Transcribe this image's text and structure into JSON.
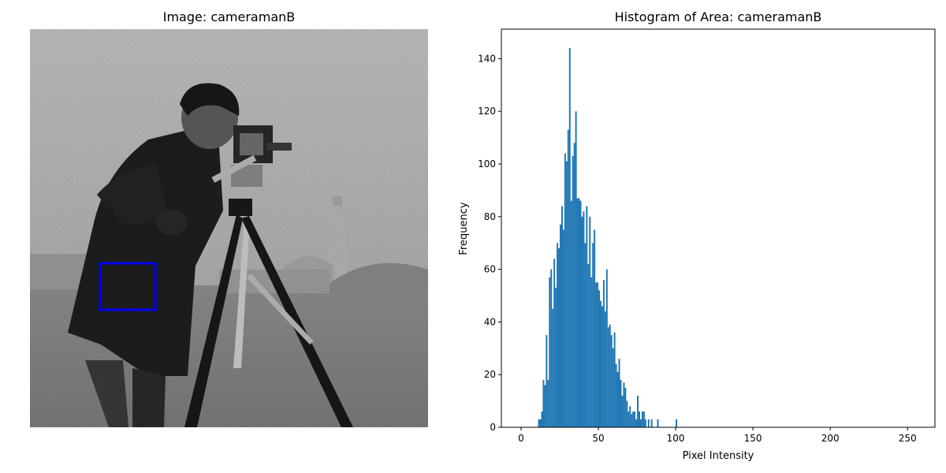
{
  "left_panel": {
    "title": "Image: cameramanB"
  },
  "right_panel": {
    "title": "Histogram of Area: cameramanB"
  },
  "colors": {
    "bars": "#1f77b4",
    "roi_box": "#0000ff"
  },
  "chart_data": {
    "type": "bar",
    "title": "Histogram of Area: cameramanB",
    "xlabel": "Pixel Intensity",
    "ylabel": "Frequency",
    "xlim": [
      -12.75,
      267.75
    ],
    "ylim": [
      0,
      151.2
    ],
    "xticks": [
      0,
      50,
      100,
      150,
      200,
      250
    ],
    "yticks": [
      0,
      20,
      40,
      60,
      80,
      100,
      120,
      140
    ],
    "bin_width": 1,
    "bins": [
      [
        11,
        3
      ],
      [
        12,
        3
      ],
      [
        13,
        6
      ],
      [
        14,
        18
      ],
      [
        15,
        16
      ],
      [
        16,
        35
      ],
      [
        17,
        18
      ],
      [
        18,
        57
      ],
      [
        19,
        60
      ],
      [
        20,
        45
      ],
      [
        21,
        64
      ],
      [
        22,
        53
      ],
      [
        23,
        70
      ],
      [
        24,
        68
      ],
      [
        25,
        77
      ],
      [
        26,
        84
      ],
      [
        27,
        75
      ],
      [
        28,
        104
      ],
      [
        29,
        101
      ],
      [
        30,
        113
      ],
      [
        31,
        144
      ],
      [
        32,
        86
      ],
      [
        33,
        103
      ],
      [
        34,
        108
      ],
      [
        35,
        120
      ],
      [
        36,
        87
      ],
      [
        37,
        87
      ],
      [
        38,
        86
      ],
      [
        39,
        80
      ],
      [
        40,
        82
      ],
      [
        41,
        70
      ],
      [
        42,
        84
      ],
      [
        43,
        62
      ],
      [
        44,
        80
      ],
      [
        45,
        57
      ],
      [
        46,
        70
      ],
      [
        47,
        75
      ],
      [
        48,
        55
      ],
      [
        49,
        55
      ],
      [
        50,
        52
      ],
      [
        51,
        48
      ],
      [
        52,
        46
      ],
      [
        53,
        56
      ],
      [
        54,
        44
      ],
      [
        55,
        60
      ],
      [
        56,
        38
      ],
      [
        57,
        39
      ],
      [
        58,
        35
      ],
      [
        59,
        30
      ],
      [
        60,
        36
      ],
      [
        61,
        24
      ],
      [
        62,
        21
      ],
      [
        63,
        26
      ],
      [
        64,
        18
      ],
      [
        65,
        12
      ],
      [
        66,
        17
      ],
      [
        67,
        15
      ],
      [
        68,
        10
      ],
      [
        69,
        6
      ],
      [
        70,
        8
      ],
      [
        71,
        5
      ],
      [
        72,
        6
      ],
      [
        73,
        6
      ],
      [
        74,
        3
      ],
      [
        75,
        12
      ],
      [
        76,
        6
      ],
      [
        77,
        3
      ],
      [
        78,
        6
      ],
      [
        79,
        6
      ],
      [
        80,
        3
      ],
      [
        82,
        3
      ],
      [
        84,
        3
      ],
      [
        88,
        3
      ],
      [
        100,
        3
      ]
    ]
  }
}
